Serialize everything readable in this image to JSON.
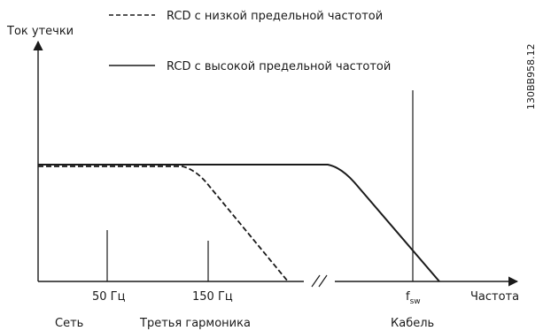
{
  "chart_data": {
    "type": "line",
    "ylabel": "Ток утечки",
    "xlabel": "Частота",
    "figure_code": "130BB958.12",
    "series": [
      {
        "name": "RCD с низкой предельной частотой",
        "style": "dashed",
        "description_points": [
          {
            "x": "0",
            "y": "flat"
          },
          {
            "x": "≈150 Гц",
            "y": "flat"
          },
          {
            "x": "above 150 Гц",
            "y": "falls to 0"
          }
        ]
      },
      {
        "name": "RCD с высокой предельной частотой",
        "style": "solid",
        "description_points": [
          {
            "x": "0",
            "y": "flat"
          },
          {
            "x": "beyond break",
            "y": "flat"
          },
          {
            "x": "past f_sw",
            "y": "falls to 0"
          }
        ]
      }
    ],
    "x_ticks": [
      {
        "label": "50 Гц",
        "group": "Сеть"
      },
      {
        "label": "150 Гц",
        "group": "Третья гармоника"
      },
      {
        "label": "f",
        "label_sub": "sw",
        "group": "Кабель"
      }
    ],
    "axis_break": "//",
    "grid": false,
    "legend_position": "top"
  }
}
